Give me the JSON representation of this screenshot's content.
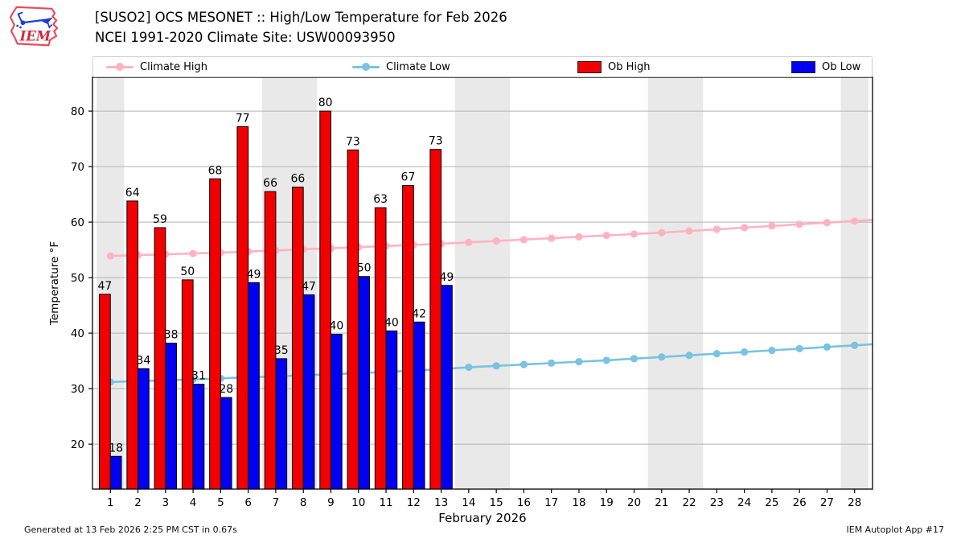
{
  "header": {
    "title_line1": "[SUSO2] OCS MESONET :: High/Low Temperature for Feb 2026",
    "title_line2": "NCEI 1991-2020 Climate Site: USW00093950"
  },
  "logo": {
    "text": "IEM"
  },
  "legend": {
    "items": [
      {
        "label": "Climate High",
        "type": "line",
        "color": "#ffb3c1"
      },
      {
        "label": "Climate Low",
        "type": "line",
        "color": "#79c3e1"
      },
      {
        "label": "Ob High",
        "type": "bar",
        "color": "#f20000"
      },
      {
        "label": "Ob Low",
        "type": "bar",
        "color": "#0000f2"
      }
    ]
  },
  "footer": {
    "left": "Generated at 13 Feb 2026 2:25 PM CST in 0.67s",
    "right": "IEM Autoplot App #17"
  },
  "chart_data": {
    "type": "bar",
    "title": "[SUSO2] OCS MESONET :: High/Low Temperature for Feb 2026",
    "subtitle": "NCEI 1991-2020 Climate Site: USW00093950",
    "xlabel": "February 2026",
    "ylabel": "Temperature °F",
    "x_days": [
      1,
      2,
      3,
      4,
      5,
      6,
      7,
      8,
      9,
      10,
      11,
      12,
      13,
      14,
      15,
      16,
      17,
      18,
      19,
      20,
      21,
      22,
      23,
      24,
      25,
      26,
      27,
      28
    ],
    "xlim": [
      0.35,
      28.65
    ],
    "ylim": [
      11.9,
      86.1
    ],
    "yticks": [
      20,
      30,
      40,
      50,
      60,
      70,
      80
    ],
    "grid": "horizontal",
    "legend_position": "top",
    "weekend_bands": [
      [
        0.5,
        1.5
      ],
      [
        6.5,
        8.5
      ],
      [
        13.5,
        15.5
      ],
      [
        20.5,
        22.5
      ],
      [
        27.5,
        28.5
      ]
    ],
    "colors": {
      "ob_high": "#f20000",
      "ob_low": "#0000f2",
      "climate_high": "#ffb3c1",
      "climate_low": "#79c3e1",
      "band": "#e9e9e9",
      "grid": "#b3b3b3",
      "bar_edge": "#000000"
    },
    "series": [
      {
        "name": "Climate High",
        "type": "line",
        "values": [
          53.9,
          54.05,
          54.2,
          54.35,
          54.5,
          54.7,
          54.9,
          55.1,
          55.3,
          55.5,
          55.7,
          55.9,
          56.1,
          56.35,
          56.6,
          56.85,
          57.1,
          57.35,
          57.6,
          57.85,
          58.1,
          58.4,
          58.7,
          59.0,
          59.3,
          59.6,
          59.9,
          60.2
        ]
      },
      {
        "name": "Climate Low",
        "type": "line",
        "values": [
          31.2,
          31.35,
          31.5,
          31.65,
          31.85,
          32.05,
          32.2,
          32.4,
          32.6,
          32.8,
          33.0,
          33.25,
          33.5,
          33.85,
          34.1,
          34.35,
          34.6,
          34.85,
          35.1,
          35.4,
          35.7,
          36.0,
          36.3,
          36.6,
          36.9,
          37.2,
          37.5,
          37.8
        ]
      },
      {
        "name": "Ob High",
        "type": "bar",
        "days": [
          1,
          2,
          3,
          4,
          5,
          6,
          7,
          8,
          9,
          10,
          11,
          12,
          13
        ],
        "values": [
          47.0,
          63.8,
          59.0,
          49.6,
          67.8,
          77.2,
          65.5,
          66.3,
          80.0,
          73.0,
          62.6,
          66.6,
          73.1
        ],
        "labels": [
          47,
          64,
          59,
          50,
          68,
          77,
          66,
          66,
          80,
          73,
          63,
          67,
          73
        ]
      },
      {
        "name": "Ob Low",
        "type": "bar",
        "days": [
          1,
          2,
          3,
          4,
          5,
          6,
          7,
          8,
          9,
          10,
          11,
          12,
          13
        ],
        "values": [
          17.8,
          33.6,
          38.2,
          30.8,
          28.4,
          49.1,
          35.4,
          46.9,
          39.8,
          50.2,
          40.4,
          42.0,
          48.6
        ],
        "labels": [
          18,
          34,
          38,
          31,
          28,
          49,
          35,
          47,
          40,
          50,
          40,
          42,
          49
        ]
      }
    ]
  }
}
